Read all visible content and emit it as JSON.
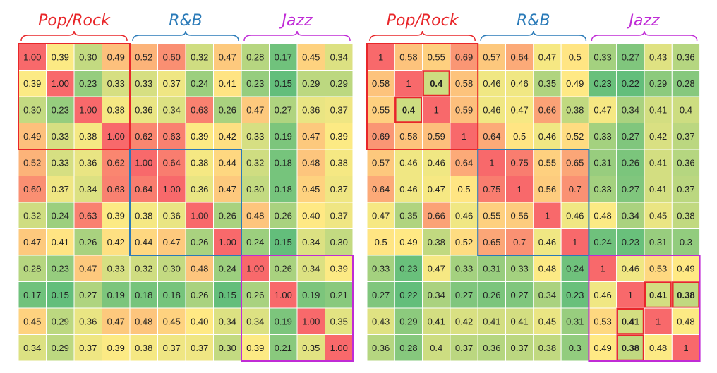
{
  "chart_data": [
    {
      "type": "heatmap",
      "group_labels": [
        "Pop/Rock",
        "R&B",
        "Jazz"
      ],
      "group_colors": [
        "#e8262a",
        "#2a7ab8",
        "#c02bd6"
      ],
      "color_scale": {
        "low": "#63be7b",
        "mid": "#ffeb84",
        "high": "#f8696b"
      },
      "values": [
        [
          "1.00",
          "0.39",
          "0.30",
          "0.49",
          "0.52",
          "0.60",
          "0.32",
          "0.47",
          "0.28",
          "0.17",
          "0.45",
          "0.34"
        ],
        [
          "0.39",
          "1.00",
          "0.23",
          "0.33",
          "0.33",
          "0.37",
          "0.24",
          "0.41",
          "0.23",
          "0.15",
          "0.29",
          "0.29"
        ],
        [
          "0.30",
          "0.23",
          "1.00",
          "0.38",
          "0.36",
          "0.34",
          "0.63",
          "0.26",
          "0.47",
          "0.27",
          "0.36",
          "0.37"
        ],
        [
          "0.49",
          "0.33",
          "0.38",
          "1.00",
          "0.62",
          "0.63",
          "0.39",
          "0.42",
          "0.33",
          "0.19",
          "0.47",
          "0.39"
        ],
        [
          "0.52",
          "0.33",
          "0.36",
          "0.62",
          "1.00",
          "0.64",
          "0.38",
          "0.44",
          "0.32",
          "0.18",
          "0.48",
          "0.38"
        ],
        [
          "0.60",
          "0.37",
          "0.34",
          "0.63",
          "0.64",
          "1.00",
          "0.36",
          "0.47",
          "0.30",
          "0.18",
          "0.45",
          "0.37"
        ],
        [
          "0.32",
          "0.24",
          "0.63",
          "0.39",
          "0.38",
          "0.36",
          "1.00",
          "0.26",
          "0.48",
          "0.26",
          "0.40",
          "0.37"
        ],
        [
          "0.47",
          "0.41",
          "0.26",
          "0.42",
          "0.44",
          "0.47",
          "0.26",
          "1.00",
          "0.24",
          "0.15",
          "0.34",
          "0.30"
        ],
        [
          "0.28",
          "0.23",
          "0.47",
          "0.33",
          "0.32",
          "0.30",
          "0.48",
          "0.24",
          "1.00",
          "0.26",
          "0.34",
          "0.39"
        ],
        [
          "0.17",
          "0.15",
          "0.27",
          "0.19",
          "0.18",
          "0.18",
          "0.26",
          "0.15",
          "0.26",
          "1.00",
          "0.19",
          "0.21"
        ],
        [
          "0.45",
          "0.29",
          "0.36",
          "0.47",
          "0.48",
          "0.45",
          "0.40",
          "0.34",
          "0.34",
          "0.19",
          "1.00",
          "0.35"
        ],
        [
          "0.34",
          "0.29",
          "0.37",
          "0.39",
          "0.38",
          "0.37",
          "0.37",
          "0.30",
          "0.39",
          "0.21",
          "0.35",
          "1.00"
        ]
      ],
      "highlighted_cells": []
    },
    {
      "type": "heatmap",
      "group_labels": [
        "Pop/Rock",
        "R&B",
        "Jazz"
      ],
      "group_colors": [
        "#e8262a",
        "#2a7ab8",
        "#c02bd6"
      ],
      "color_scale": {
        "low": "#63be7b",
        "mid": "#ffeb84",
        "high": "#f8696b"
      },
      "values": [
        [
          "1",
          "0.58",
          "0.55",
          "0.69",
          "0.57",
          "0.64",
          "0.47",
          "0.5",
          "0.33",
          "0.27",
          "0.43",
          "0.36"
        ],
        [
          "0.58",
          "1",
          "0.4",
          "0.58",
          "0.46",
          "0.46",
          "0.35",
          "0.49",
          "0.23",
          "0.22",
          "0.29",
          "0.28"
        ],
        [
          "0.55",
          "0.4",
          "1",
          "0.59",
          "0.46",
          "0.47",
          "0.66",
          "0.38",
          "0.47",
          "0.34",
          "0.41",
          "0.4"
        ],
        [
          "0.69",
          "0.58",
          "0.59",
          "1",
          "0.64",
          "0.5",
          "0.46",
          "0.52",
          "0.33",
          "0.27",
          "0.42",
          "0.37"
        ],
        [
          "0.57",
          "0.46",
          "0.46",
          "0.64",
          "1",
          "0.75",
          "0.55",
          "0.65",
          "0.31",
          "0.26",
          "0.41",
          "0.36"
        ],
        [
          "0.64",
          "0.46",
          "0.47",
          "0.5",
          "0.75",
          "1",
          "0.56",
          "0.7",
          "0.33",
          "0.27",
          "0.41",
          "0.37"
        ],
        [
          "0.47",
          "0.35",
          "0.66",
          "0.46",
          "0.55",
          "0.56",
          "1",
          "0.46",
          "0.48",
          "0.34",
          "0.45",
          "0.38"
        ],
        [
          "0.5",
          "0.49",
          "0.38",
          "0.52",
          "0.65",
          "0.7",
          "0.46",
          "1",
          "0.24",
          "0.23",
          "0.31",
          "0.3"
        ],
        [
          "0.33",
          "0.23",
          "0.47",
          "0.33",
          "0.31",
          "0.33",
          "0.48",
          "0.24",
          "1",
          "0.46",
          "0.53",
          "0.49"
        ],
        [
          "0.27",
          "0.22",
          "0.34",
          "0.27",
          "0.26",
          "0.27",
          "0.34",
          "0.23",
          "0.46",
          "1",
          "0.41",
          "0.38"
        ],
        [
          "0.43",
          "0.29",
          "0.41",
          "0.42",
          "0.41",
          "0.41",
          "0.45",
          "0.31",
          "0.53",
          "0.41",
          "1",
          "0.48"
        ],
        [
          "0.36",
          "0.28",
          "0.4",
          "0.37",
          "0.36",
          "0.37",
          "0.38",
          "0.3",
          "0.49",
          "0.38",
          "0.48",
          "1"
        ]
      ],
      "highlighted_cells": [
        [
          1,
          2
        ],
        [
          2,
          1
        ],
        [
          9,
          10
        ],
        [
          9,
          11
        ],
        [
          10,
          9
        ],
        [
          11,
          9
        ]
      ]
    }
  ]
}
